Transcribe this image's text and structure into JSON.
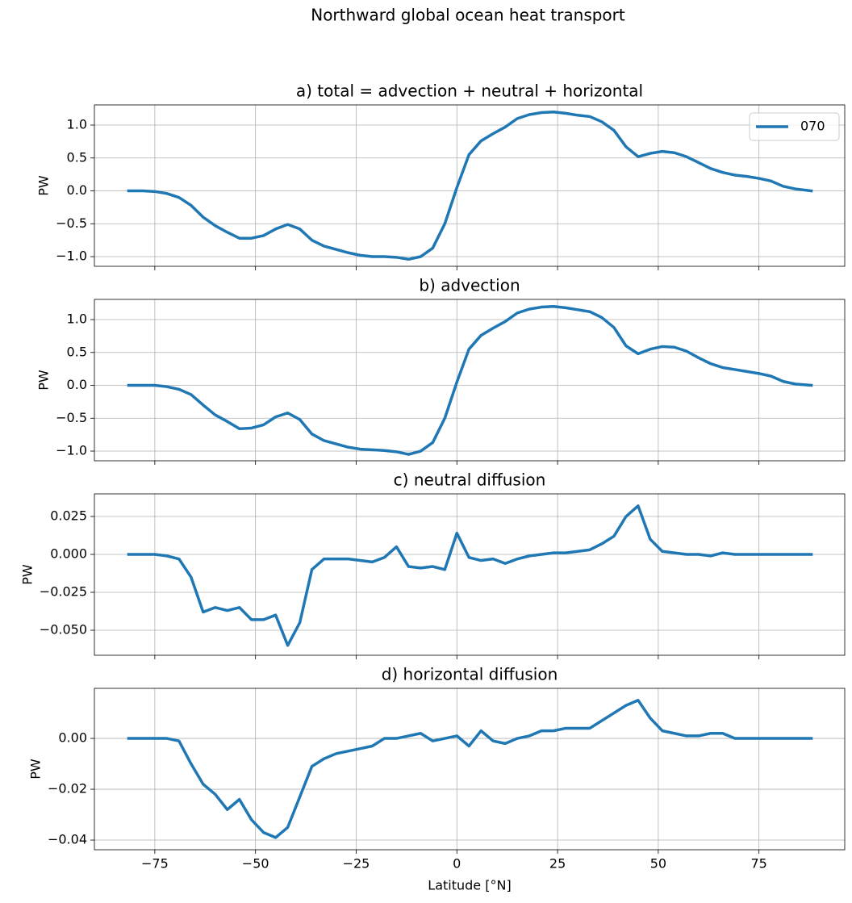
{
  "title": "Northward global ocean heat transport",
  "chart_data": [
    {
      "type": "line",
      "title": "a) total = advection + neutral + horizontal",
      "ylabel": "PW",
      "legend": "upper right",
      "grid": true,
      "x": [
        -81.5,
        -78,
        -75,
        -72,
        -69,
        -66,
        -63,
        -60,
        -57,
        -54,
        -51,
        -48,
        -45,
        -42,
        -39,
        -36,
        -33,
        -30,
        -27,
        -24,
        -21,
        -18,
        -15,
        -12,
        -9,
        -6,
        -3,
        0,
        3,
        6,
        9,
        12,
        15,
        18,
        21,
        24,
        27,
        30,
        33,
        36,
        39,
        42,
        45,
        48,
        51,
        54,
        57,
        60,
        63,
        66,
        69,
        72,
        75,
        78,
        81,
        84,
        88
      ],
      "series": [
        {
          "name": "070",
          "color": "#1f77b4",
          "values": [
            0,
            0,
            -0.01,
            -0.04,
            -0.1,
            -0.22,
            -0.4,
            -0.53,
            -0.63,
            -0.72,
            -0.72,
            -0.68,
            -0.58,
            -0.51,
            -0.58,
            -0.75,
            -0.84,
            -0.89,
            -0.94,
            -0.98,
            -1.0,
            -1.0,
            -1.01,
            -1.04,
            -1.0,
            -0.87,
            -0.5,
            0.05,
            0.55,
            0.76,
            0.87,
            0.97,
            1.1,
            1.16,
            1.19,
            1.2,
            1.18,
            1.15,
            1.13,
            1.05,
            0.92,
            0.67,
            0.52,
            0.57,
            0.6,
            0.58,
            0.52,
            0.43,
            0.34,
            0.28,
            0.24,
            0.22,
            0.19,
            0.15,
            0.07,
            0.03,
            0
          ]
        }
      ],
      "xlim": [
        -90,
        96.3
      ],
      "xticks": [
        -75,
        -50,
        -25,
        0,
        25,
        50,
        75
      ],
      "ylim": [
        -1.147,
        1.307
      ],
      "yticks": [
        {
          "value": -1,
          "label": "−1.0"
        },
        {
          "value": -0.5,
          "label": "−0.5"
        },
        {
          "value": 0,
          "label": "0.0"
        },
        0.5,
        {
          "value": 1,
          "label": "1.0"
        }
      ]
    },
    {
      "type": "line",
      "title": "b) advection",
      "ylabel": "PW",
      "grid": true,
      "color": "#1f77b4",
      "x": [
        -81.5,
        -78,
        -75,
        -72,
        -69,
        -66,
        -63,
        -60,
        -57,
        -54,
        -51,
        -48,
        -45,
        -42,
        -39,
        -36,
        -33,
        -30,
        -27,
        -24,
        -21,
        -18,
        -15,
        -12,
        -9,
        -6,
        -3,
        0,
        3,
        6,
        9,
        12,
        15,
        18,
        21,
        24,
        27,
        30,
        33,
        36,
        39,
        42,
        45,
        48,
        51,
        54,
        57,
        60,
        63,
        66,
        69,
        72,
        75,
        78,
        81,
        84,
        88
      ],
      "values": [
        0,
        0,
        0,
        -0.02,
        -0.06,
        -0.14,
        -0.3,
        -0.45,
        -0.55,
        -0.66,
        -0.65,
        -0.6,
        -0.48,
        -0.42,
        -0.52,
        -0.74,
        -0.84,
        -0.89,
        -0.94,
        -0.97,
        -0.98,
        -0.99,
        -1.01,
        -1.05,
        -1.0,
        -0.87,
        -0.5,
        0.05,
        0.55,
        0.76,
        0.87,
        0.97,
        1.1,
        1.16,
        1.19,
        1.2,
        1.18,
        1.15,
        1.12,
        1.03,
        0.88,
        0.6,
        0.48,
        0.55,
        0.59,
        0.58,
        0.52,
        0.42,
        0.33,
        0.27,
        0.24,
        0.21,
        0.18,
        0.14,
        0.06,
        0.02,
        0
      ],
      "xlim": [
        -90,
        96.3
      ],
      "xticks": [
        -75,
        -50,
        -25,
        0,
        25,
        50,
        75
      ],
      "ylim": [
        -1.147,
        1.307
      ],
      "yticks": [
        {
          "value": -1,
          "label": "−1.0"
        },
        {
          "value": -0.5,
          "label": "−0.5"
        },
        {
          "value": 0,
          "label": "0.0"
        },
        0.5,
        {
          "value": 1,
          "label": "1.0"
        }
      ]
    },
    {
      "type": "line",
      "title": "c) neutral diffusion",
      "ylabel": "PW",
      "grid": true,
      "color": "#1f77b4",
      "x": [
        -81.5,
        -78,
        -75,
        -72,
        -69,
        -66,
        -63,
        -60,
        -57,
        -54,
        -51,
        -48,
        -45,
        -42,
        -39,
        -36,
        -33,
        -30,
        -27,
        -24,
        -21,
        -18,
        -15,
        -12,
        -9,
        -6,
        -3,
        0,
        3,
        6,
        9,
        12,
        15,
        18,
        21,
        24,
        27,
        30,
        33,
        36,
        39,
        42,
        45,
        48,
        51,
        54,
        57,
        60,
        63,
        66,
        69,
        72,
        75,
        78,
        81,
        84,
        88
      ],
      "values": [
        0,
        0,
        0,
        -0.001,
        -0.003,
        -0.015,
        -0.038,
        -0.035,
        -0.037,
        -0.035,
        -0.043,
        -0.043,
        -0.04,
        -0.06,
        -0.045,
        -0.01,
        -0.003,
        -0.003,
        -0.003,
        -0.004,
        -0.005,
        -0.002,
        0.005,
        -0.008,
        -0.009,
        -0.008,
        -0.01,
        0.014,
        -0.002,
        -0.004,
        -0.003,
        -0.006,
        -0.003,
        -0.001,
        0,
        0.001,
        0.001,
        0.002,
        0.003,
        0.007,
        0.012,
        0.025,
        0.032,
        0.01,
        0.002,
        0.001,
        0,
        0,
        -0.001,
        0.001,
        0,
        0,
        0,
        0,
        0,
        0,
        0
      ],
      "xlim": [
        -90,
        96.3
      ],
      "xticks": [
        -75,
        -50,
        -25,
        0,
        25,
        50,
        75
      ],
      "ylim": [
        -0.0665,
        0.0399
      ],
      "yticks": [
        {
          "value": -0.05,
          "label": "−0.050"
        },
        {
          "value": -0.025,
          "label": "−0.025"
        },
        {
          "value": 0,
          "label": "0.000"
        },
        0.025
      ]
    },
    {
      "type": "line",
      "title": "d) horizontal diffusion",
      "ylabel": "PW",
      "xlabel": "Latitude [°N]",
      "grid": true,
      "color": "#1f77b4",
      "x": [
        -81.5,
        -78,
        -75,
        -72,
        -69,
        -66,
        -63,
        -60,
        -57,
        -54,
        -51,
        -48,
        -45,
        -42,
        -39,
        -36,
        -33,
        -30,
        -27,
        -24,
        -21,
        -18,
        -15,
        -12,
        -9,
        -6,
        -3,
        0,
        3,
        6,
        9,
        12,
        15,
        18,
        21,
        24,
        27,
        30,
        33,
        36,
        39,
        42,
        45,
        48,
        51,
        54,
        57,
        60,
        63,
        66,
        69,
        72,
        75,
        78,
        81,
        84,
        88
      ],
      "values": [
        0,
        0,
        0,
        0,
        -0.001,
        -0.01,
        -0.018,
        -0.022,
        -0.028,
        -0.024,
        -0.032,
        -0.037,
        -0.039,
        -0.035,
        -0.023,
        -0.011,
        -0.008,
        -0.006,
        -0.005,
        -0.004,
        -0.003,
        0,
        0,
        0.001,
        0.002,
        -0.001,
        0,
        0.001,
        -0.003,
        0.003,
        -0.001,
        -0.002,
        0,
        0.001,
        0.003,
        0.003,
        0.004,
        0.004,
        0.004,
        0.007,
        0.01,
        0.013,
        0.015,
        0.008,
        0.003,
        0.002,
        0.001,
        0.001,
        0.002,
        0.002,
        0,
        0,
        0,
        0,
        0,
        0,
        0
      ],
      "xlim": [
        -90,
        96.3
      ],
      "xticks": [
        {
          "value": -75,
          "label": "−75"
        },
        {
          "value": -50,
          "label": "−50"
        },
        {
          "value": -25,
          "label": "−25"
        },
        0,
        25,
        50,
        75
      ],
      "ylim": [
        -0.0438,
        0.0197
      ],
      "yticks": [
        {
          "value": -0.04,
          "label": "−0.04"
        },
        {
          "value": -0.02,
          "label": "−0.02"
        },
        {
          "value": 0,
          "label": "0.00"
        }
      ]
    }
  ]
}
